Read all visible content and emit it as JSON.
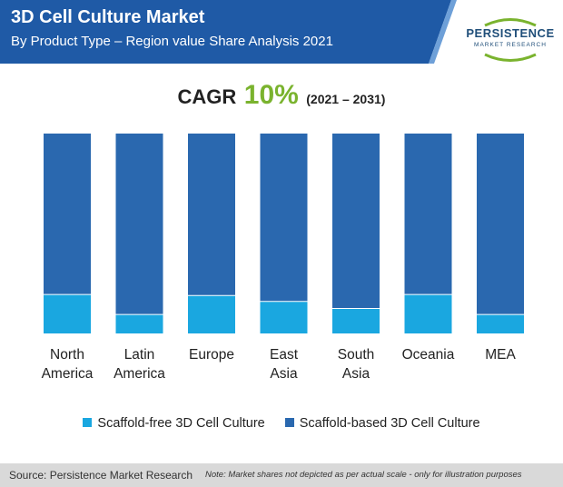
{
  "header": {
    "title": "3D Cell Culture Market",
    "subtitle": "By Product Type – Region value Share Analysis 2021"
  },
  "logo": {
    "name": "PERSISTENCE",
    "tagline": "MARKET RESEARCH"
  },
  "cagr": {
    "label": "CAGR",
    "value": "10%",
    "period": "(2021 – 2031)"
  },
  "colors": {
    "header_bg": "#1f5aa6",
    "scaffold_free": "#1aa7e0",
    "scaffold_based": "#2a68af",
    "cagr_accent": "#7ab32e",
    "footer_bg": "#d9d9d9"
  },
  "chart_data": {
    "type": "bar",
    "stacked": true,
    "categories": [
      "North America",
      "Latin America",
      "Europe",
      "East Asia",
      "South Asia",
      "Oceania",
      "MEA"
    ],
    "series": [
      {
        "name": "Scaffold-free 3D Cell Culture",
        "values": [
          19.5,
          9.5,
          19,
          16,
          12.5,
          19.5,
          9.5
        ]
      },
      {
        "name": "Scaffold-based 3D Cell Culture",
        "values": [
          80.5,
          90.5,
          81,
          84,
          87.5,
          80.5,
          90.5
        ]
      }
    ],
    "ylim": [
      0,
      100
    ],
    "grid": false,
    "legend_position": "bottom"
  },
  "footer": {
    "source": "Source: Persistence Market Research",
    "note": "Note: Market shares not depicted as per actual scale - only for illustration purposes"
  }
}
